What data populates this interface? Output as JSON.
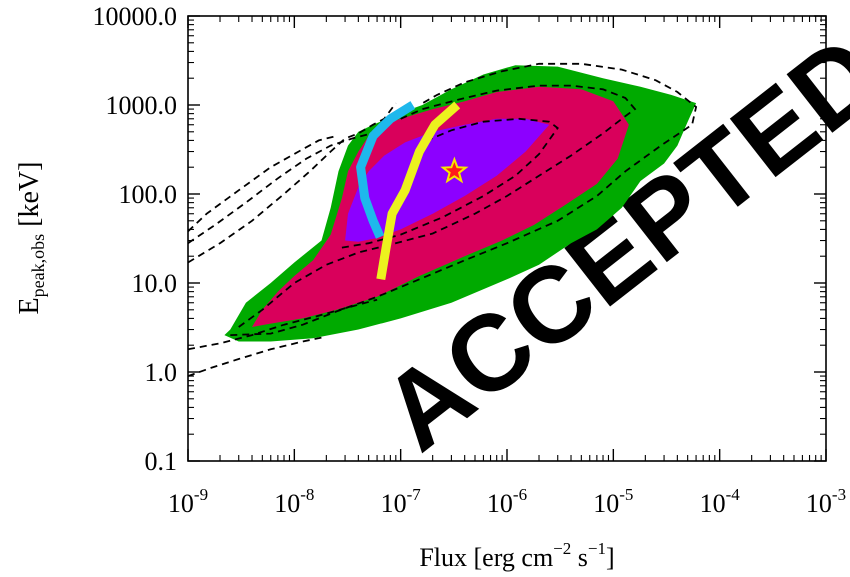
{
  "chart_data": {
    "type": "contour",
    "title": "",
    "xlabel": "Flux [erg cm$^{-2}$ s$^{-1}$]",
    "xlabel_parts": {
      "base": "Flux [erg cm",
      "exp1": "−2",
      "mid": " s",
      "exp2": "−1",
      "end": "]"
    },
    "ylabel": "E",
    "ylabel_sub": "peak,obs",
    "ylabel_unit": " [keV]",
    "x_scale": "log",
    "y_scale": "log",
    "xlim": [
      1e-09,
      0.001
    ],
    "ylim": [
      0.1,
      10000
    ],
    "x_ticks": [
      1e-09,
      1e-08,
      1e-07,
      1e-06,
      1e-05,
      0.0001,
      0.001
    ],
    "x_tick_labels": [
      {
        "base": "10",
        "exp": "-9"
      },
      {
        "base": "10",
        "exp": "-8"
      },
      {
        "base": "10",
        "exp": "-7"
      },
      {
        "base": "10",
        "exp": "-6"
      },
      {
        "base": "10",
        "exp": "-5"
      },
      {
        "base": "10",
        "exp": "-4"
      },
      {
        "base": "10",
        "exp": "-3"
      }
    ],
    "y_ticks": [
      0.1,
      1,
      10,
      100,
      1000,
      10000
    ],
    "y_tick_labels": [
      "0.1",
      "1.0",
      "10.0",
      "100.0",
      "1000.0",
      "10000.0"
    ],
    "grid": false,
    "legend": "none",
    "colors": {
      "outer": "#00aa00",
      "middle": "#d9005b",
      "inner": "#8c00ff",
      "cyan": "#1eb8ec",
      "yellow": "#ecf21e",
      "star_fill": "#ff1c1c",
      "star_stroke": "#f5e600"
    },
    "regions": [
      {
        "level": "outer",
        "points": [
          [
            2.5e-09,
            3
          ],
          [
            3.5e-09,
            6
          ],
          [
            6e-09,
            10
          ],
          [
            1e-08,
            17
          ],
          [
            1.8e-08,
            30
          ],
          [
            2.2e-08,
            70
          ],
          [
            2.6e-08,
            180
          ],
          [
            3.2e-08,
            350
          ],
          [
            4e-08,
            500
          ],
          [
            5.5e-08,
            600
          ],
          [
            7.5e-08,
            700
          ],
          [
            1.1e-07,
            850
          ],
          [
            1.6e-07,
            1000
          ],
          [
            3e-07,
            1500
          ],
          [
            6e-07,
            2200
          ],
          [
            1.2e-06,
            2800
          ],
          [
            3e-06,
            2700
          ],
          [
            8e-06,
            2000
          ],
          [
            1.8e-05,
            1600
          ],
          [
            3.5e-05,
            1300
          ],
          [
            6e-05,
            1050
          ],
          [
            5e-05,
            650
          ],
          [
            4e-05,
            350
          ],
          [
            3e-05,
            220
          ],
          [
            1.8e-05,
            140
          ],
          [
            1.2e-05,
            70
          ],
          [
            7e-06,
            40
          ],
          [
            4e-06,
            28
          ],
          [
            2e-06,
            16
          ],
          [
            1e-06,
            11
          ],
          [
            3e-07,
            6
          ],
          [
            1e-07,
            4
          ],
          [
            4e-08,
            3
          ],
          [
            1.5e-08,
            2.4
          ],
          [
            6e-09,
            2.2
          ],
          [
            3e-09,
            2.2
          ],
          [
            2.2e-09,
            2.6
          ]
        ]
      },
      {
        "level": "middle",
        "points": [
          [
            4e-09,
            3.2
          ],
          [
            5e-09,
            5
          ],
          [
            7e-09,
            8
          ],
          [
            1e-08,
            12
          ],
          [
            1.5e-08,
            18
          ],
          [
            2.2e-08,
            35
          ],
          [
            2.8e-08,
            90
          ],
          [
            3.2e-08,
            180
          ],
          [
            4e-08,
            300
          ],
          [
            5e-08,
            450
          ],
          [
            7e-08,
            600
          ],
          [
            1e-07,
            700
          ],
          [
            2e-07,
            900
          ],
          [
            4e-07,
            1100
          ],
          [
            8e-07,
            1400
          ],
          [
            2e-06,
            1600
          ],
          [
            5e-06,
            1500
          ],
          [
            1e-05,
            1100
          ],
          [
            1.4e-05,
            600
          ],
          [
            1.1e-05,
            250
          ],
          [
            7e-06,
            130
          ],
          [
            3.5e-06,
            75
          ],
          [
            1.8e-06,
            45
          ],
          [
            9e-07,
            30
          ],
          [
            4e-07,
            20
          ],
          [
            1.5e-07,
            12
          ],
          [
            6e-08,
            7
          ],
          [
            2.5e-08,
            5
          ],
          [
            1.2e-08,
            4
          ],
          [
            6e-09,
            3.5
          ]
        ]
      },
      {
        "level": "inner",
        "points": [
          [
            3e-08,
            30
          ],
          [
            3.2e-08,
            60
          ],
          [
            4e-08,
            120
          ],
          [
            5e-08,
            180
          ],
          [
            7e-08,
            270
          ],
          [
            1.1e-07,
            380
          ],
          [
            2e-07,
            500
          ],
          [
            4e-07,
            600
          ],
          [
            8e-07,
            700
          ],
          [
            1.5e-06,
            700
          ],
          [
            2.5e-06,
            600
          ],
          [
            1.5e-06,
            300
          ],
          [
            8e-07,
            160
          ],
          [
            4e-07,
            95
          ],
          [
            2e-07,
            60
          ],
          [
            1e-07,
            40
          ],
          [
            6e-08,
            32
          ],
          [
            4e-08,
            29
          ]
        ]
      }
    ],
    "dashed_contours": [
      {
        "points": [
          [
            3e-09,
            3.2
          ],
          [
            5e-09,
            5
          ],
          [
            1e-08,
            10
          ],
          [
            2e-08,
            16
          ],
          [
            4e-08,
            22
          ],
          [
            8e-08,
            27
          ],
          [
            2e-07,
            36
          ],
          [
            5e-07,
            60
          ],
          [
            1e-06,
            95
          ],
          [
            2e-06,
            160
          ],
          [
            4e-06,
            270
          ],
          [
            8e-06,
            480
          ],
          [
            1.3e-05,
            750
          ],
          [
            1.6e-05,
            900
          ],
          [
            1.3e-05,
            1200
          ],
          [
            8e-06,
            1500
          ],
          [
            4e-06,
            1650
          ],
          [
            2e-06,
            1650
          ],
          [
            8e-07,
            1450
          ],
          [
            3.5e-07,
            1150
          ],
          [
            1.6e-07,
            900
          ],
          [
            1e-07,
            700
          ]
        ],
        "closed": false
      },
      {
        "points": [
          [
            2.5e-09,
            2.6
          ],
          [
            6e-09,
            2.7
          ],
          [
            1.2e-08,
            3.4
          ],
          [
            2.5e-08,
            4.8
          ],
          [
            6e-08,
            7
          ],
          [
            1.5e-07,
            11
          ],
          [
            4e-07,
            18
          ],
          [
            1e-06,
            28
          ],
          [
            3e-06,
            50
          ],
          [
            7e-06,
            95
          ],
          [
            1.3e-05,
            180
          ],
          [
            2.8e-05,
            350
          ],
          [
            5.5e-05,
            600
          ],
          [
            6e-05,
            950
          ],
          [
            4e-05,
            1400
          ],
          [
            2.5e-05,
            1900
          ],
          [
            1.2e-05,
            2500
          ],
          [
            5e-06,
            2900
          ],
          [
            2e-06,
            2900
          ],
          [
            9e-07,
            2400
          ],
          [
            4e-07,
            1800
          ],
          [
            2.2e-07,
            1300
          ],
          [
            1.5e-07,
            1000
          ]
        ],
        "closed": false
      },
      {
        "points": [
          [
            2.8e-08,
            25
          ],
          [
            5e-08,
            28
          ],
          [
            1e-07,
            35
          ],
          [
            2.5e-07,
            55
          ],
          [
            6e-07,
            95
          ],
          [
            1.2e-06,
            160
          ],
          [
            2e-06,
            280
          ],
          [
            3e-06,
            550
          ],
          [
            2.5e-06,
            650
          ],
          [
            1.3e-06,
            700
          ],
          [
            6e-07,
            650
          ],
          [
            3e-07,
            520
          ],
          [
            1.6e-07,
            380
          ]
        ],
        "closed": false
      },
      {
        "points": [
          [
            1e-09,
            28
          ],
          [
            1.8e-09,
            45
          ],
          [
            3.5e-09,
            80
          ],
          [
            7e-09,
            150
          ],
          [
            1.3e-08,
            250
          ],
          [
            2.2e-08,
            350
          ],
          [
            3.5e-08,
            420
          ],
          [
            5e-08,
            470
          ],
          [
            7.5e-08,
            650
          ],
          [
            1e-07,
            900
          ]
        ],
        "closed": false
      },
      {
        "points": [
          [
            1e-09,
            17
          ],
          [
            2e-09,
            28
          ],
          [
            4e-09,
            50
          ],
          [
            8e-09,
            100
          ],
          [
            1.4e-08,
            180
          ],
          [
            2.2e-08,
            300
          ],
          [
            3e-08,
            420
          ],
          [
            4e-08,
            480
          ],
          [
            5.5e-08,
            600
          ],
          [
            7e-08,
            700
          ],
          [
            9e-08,
            1050
          ]
        ],
        "closed": false
      },
      {
        "points": [
          [
            1e-09,
            38
          ],
          [
            1.5e-09,
            60
          ],
          [
            3e-09,
            110
          ],
          [
            6e-09,
            200
          ],
          [
            1.1e-08,
            300
          ],
          [
            1.7e-08,
            400
          ],
          [
            2.5e-08,
            450
          ]
        ],
        "closed": false
      },
      {
        "points": [
          [
            1e-09,
            1.8
          ],
          [
            2e-09,
            2.1
          ],
          [
            4e-09,
            2.6
          ],
          [
            8e-09,
            3.4
          ],
          [
            1.6e-08,
            4.2
          ],
          [
            3e-08,
            5.2
          ],
          [
            6e-08,
            6.5
          ]
        ],
        "closed": false
      },
      {
        "points": [
          [
            1e-09,
            0.9
          ],
          [
            1.6e-09,
            1.1
          ],
          [
            3e-09,
            1.4
          ],
          [
            6e-09,
            1.8
          ],
          [
            1.2e-08,
            2.2
          ],
          [
            2e-08,
            2.5
          ]
        ],
        "closed": false
      }
    ],
    "curves": [
      {
        "color": "cyan",
        "points": [
          [
            1.3e-07,
            1000
          ],
          [
            8e-08,
            700
          ],
          [
            5.5e-08,
            450
          ],
          [
            4.2e-08,
            200
          ],
          [
            4.6e-08,
            90
          ],
          [
            5.5e-08,
            50
          ],
          [
            6.4e-08,
            33
          ]
        ]
      },
      {
        "color": "yellow",
        "points": [
          [
            3.4e-07,
            1000
          ],
          [
            2.1e-07,
            600
          ],
          [
            1.5e-07,
            300
          ],
          [
            1.1e-07,
            110
          ],
          [
            8.3e-08,
            60
          ],
          [
            7.3e-08,
            25
          ],
          [
            6.5e-08,
            11
          ]
        ]
      }
    ],
    "marker": {
      "type": "star",
      "x": 3.2e-07,
      "y": 180
    }
  },
  "watermark": {
    "text": "ACCEPTED MANUSCRIPT",
    "color": "#bdbdbd"
  }
}
